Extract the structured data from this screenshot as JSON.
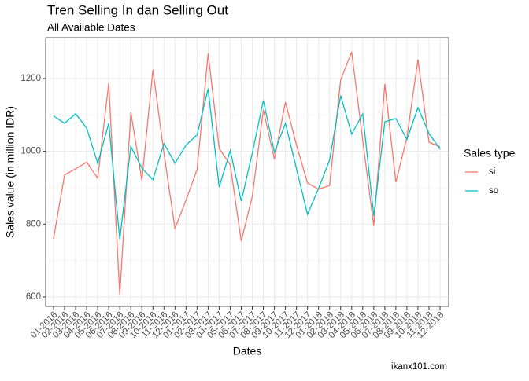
{
  "chart_data": {
    "type": "line",
    "title": "Tren Selling In dan Selling Out",
    "subtitle": "All Available Dates",
    "x_label": "Dates",
    "y_label": "Sales value (in million IDR)",
    "caption": "ikanx101.com",
    "legend_title": "Sales type",
    "legend_position": "right",
    "grid": true,
    "categories": [
      "01-2016",
      "02-2016",
      "03-2016",
      "04-2016",
      "05-2016",
      "06-2016",
      "07-2016",
      "08-2016",
      "09-2016",
      "10-2016",
      "11-2016",
      "12-2016",
      "01-2017",
      "02-2017",
      "03-2017",
      "04-2017",
      "05-2017",
      "06-2017",
      "07-2017",
      "08-2017",
      "09-2017",
      "10-2017",
      "11-2017",
      "12-2017",
      "01-2018",
      "02-2018",
      "03-2018",
      "04-2018",
      "05-2018",
      "06-2018",
      "07-2018",
      "08-2018",
      "09-2018",
      "10-2018",
      "11-2018",
      "12-2018"
    ],
    "series": [
      {
        "name": "si",
        "color": "#F8766D",
        "values": [
          760,
          935,
          952,
          970,
          926,
          1187,
          605,
          1107,
          920,
          1224,
          995,
          788,
          866,
          950,
          1269,
          1008,
          963,
          753,
          876,
          1114,
          978,
          1135,
          1017,
          913,
          896,
          906,
          1196,
          1273,
          1030,
          795,
          1185,
          915,
          1038,
          1252,
          1025,
          1012
        ]
      },
      {
        "name": "so",
        "color": "#00BFC4",
        "values": [
          1097,
          1077,
          1103,
          1064,
          967,
          1077,
          758,
          1013,
          954,
          922,
          1021,
          967,
          1017,
          1045,
          1172,
          902,
          1002,
          863,
          995,
          1140,
          997,
          1077,
          952,
          827,
          898,
          976,
          1153,
          1047,
          1103,
          822,
          1081,
          1090,
          1032,
          1120,
          1049,
          1006
        ]
      }
    ],
    "ylim": [
      574,
      1312
    ],
    "yticks": [
      600,
      800,
      1000,
      1200
    ]
  }
}
